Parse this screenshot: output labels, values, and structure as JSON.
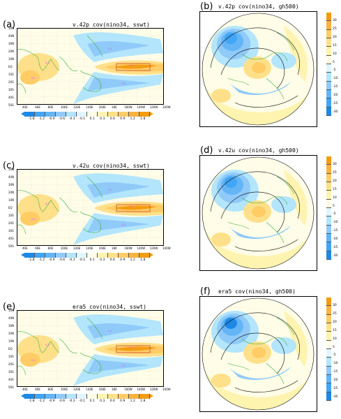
{
  "colors": {
    "neg": [
      "#1e88e5",
      "#42a5f5",
      "#64b5f6",
      "#90caf9",
      "#b3e5fc",
      "#e1f5fe"
    ],
    "pos": [
      "#fffde7",
      "#fff3b0",
      "#ffe08a",
      "#ffcc66",
      "#f9b340",
      "#f39c12"
    ],
    "coast": "#3cb043",
    "contour": "#e040fb"
  },
  "panels": {
    "a": {
      "label": "(a)",
      "title": "v.42p  cov(nino34, sswt)"
    },
    "b": {
      "label": "(b)",
      "title": "v.42p  cov(nino34, gh500)"
    },
    "c": {
      "label": "(c)",
      "title": "v.42u  cov(nino34, sswt)"
    },
    "d": {
      "label": "(d)",
      "title": "v.42u  cov(nino34, gh500)"
    },
    "e": {
      "label": "(e)",
      "title": "era5  cov(nino34, sswt)"
    },
    "f": {
      "label": "(f)",
      "title": "era5  cov(nino34, gh500)"
    }
  },
  "lat_ticks": [
    "50N",
    "40N",
    "30N",
    "20N",
    "10N",
    "EQ",
    "10S",
    "20S",
    "30S",
    "40S",
    "50S"
  ],
  "lon_ticks": [
    "40E",
    "60E",
    "80E",
    "100E",
    "120E",
    "140E",
    "160E",
    "180",
    "160W",
    "140W",
    "120W",
    "100W"
  ],
  "sswt_colorbar": [
    "-1.8",
    "-1.2",
    "-0.9",
    "-0.6",
    "-0.3",
    "-0.1",
    "0.1",
    "0.3",
    "0.6",
    "0.9",
    "1.2",
    "1.8"
  ],
  "gh_colorbar": [
    "30",
    "25",
    "20",
    "15",
    "10",
    "5",
    "-5",
    "-10",
    "-15",
    "-20",
    "-25",
    "-30"
  ]
}
